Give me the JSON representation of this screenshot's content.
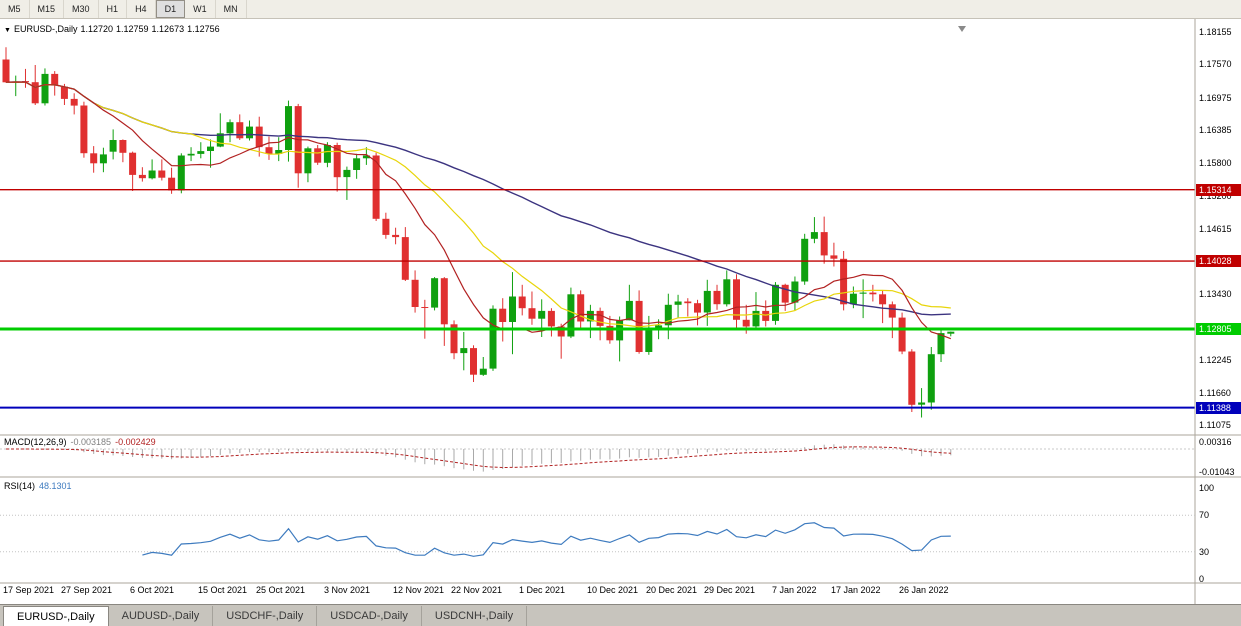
{
  "toolbar": {
    "timeframes": [
      "M5",
      "M15",
      "M30",
      "H1",
      "H4",
      "D1",
      "W1",
      "MN"
    ],
    "active": "D1"
  },
  "quote": {
    "symbol": "EURUSD-,Daily",
    "open": "1.12720",
    "high": "1.12759",
    "low": "1.12673",
    "close": "1.12756"
  },
  "chart_data": {
    "type": "candlestick",
    "symbol": "EURUSD-",
    "timeframe": "Daily",
    "y_range": [
      1.11075,
      1.18155
    ],
    "y_ticks": [
      1.18155,
      1.1757,
      1.16975,
      1.16385,
      1.158,
      1.152,
      1.14615,
      1.1343,
      1.12245,
      1.1166,
      1.11075
    ],
    "x_tick_labels": [
      "17 Sep 2021",
      "27 Sep 2021",
      "6 Oct 2021",
      "15 Oct 2021",
      "25 Oct 2021",
      "3 Nov 2021",
      "12 Nov 2021",
      "22 Nov 2021",
      "1 Dec 2021",
      "10 Dec 2021",
      "20 Dec 2021",
      "29 Dec 2021",
      "7 Jan 2022",
      "17 Jan 2022",
      "26 Jan 2022"
    ],
    "x_tick_indices": [
      0,
      6,
      13,
      20,
      26,
      33,
      40,
      46,
      53,
      60,
      66,
      72,
      79,
      85,
      92
    ],
    "colors": {
      "up": "#0FA00F",
      "down": "#E03030",
      "ma_fast": "#B22222",
      "ma_mid": "#E8D50A",
      "ma_slow": "#3C3480",
      "macd_hist": "#A9A9A9",
      "macd_signal": "#B22222",
      "rsi": "#3E7BBF"
    },
    "ma_periods": {
      "fast": 10,
      "mid": 20,
      "slow": 50
    },
    "hlines": [
      {
        "price": 1.15314,
        "label": "1.15314",
        "color": "#C00000",
        "width": 1.4
      },
      {
        "price": 1.14028,
        "label": "1.14028",
        "color": "#C00000",
        "width": 1.4
      },
      {
        "price": 1.12805,
        "label": "1.12805",
        "color": "#00CC00",
        "width": 3
      },
      {
        "price": 1.11388,
        "label": "1.11388",
        "color": "#0000BB",
        "width": 2
      }
    ],
    "indicators": {
      "macd": {
        "name": "MACD(12,26,9)",
        "fast": 12,
        "slow": 26,
        "signal": 9,
        "value_main": "-0.003185",
        "value_signal": "-0.002429",
        "y_ticks": [
          0.00316,
          -0.01043
        ],
        "y_range": [
          -0.01043,
          0.00316
        ]
      },
      "rsi": {
        "name": "RSI(14)",
        "period": 14,
        "value": "48.1301",
        "y_ticks": [
          100,
          70,
          30,
          0
        ],
        "levels": [
          70,
          30
        ],
        "y_range": [
          0,
          100
        ]
      }
    },
    "ohlc": [
      [
        1.1766,
        1.1788,
        1.1724,
        1.1725
      ],
      [
        1.1725,
        1.1737,
        1.17,
        1.1726
      ],
      [
        1.1727,
        1.1749,
        1.1715,
        1.1725
      ],
      [
        1.1725,
        1.1756,
        1.1684,
        1.1687
      ],
      [
        1.1687,
        1.175,
        1.1683,
        1.174
      ],
      [
        1.174,
        1.1745,
        1.1701,
        1.1719
      ],
      [
        1.1717,
        1.1722,
        1.1684,
        1.1695
      ],
      [
        1.1695,
        1.1705,
        1.1667,
        1.1683
      ],
      [
        1.1683,
        1.169,
        1.1589,
        1.1597
      ],
      [
        1.1597,
        1.161,
        1.1562,
        1.1579
      ],
      [
        1.1579,
        1.1607,
        1.1563,
        1.1595
      ],
      [
        1.16,
        1.164,
        1.1586,
        1.1621
      ],
      [
        1.1621,
        1.1622,
        1.1581,
        1.1598
      ],
      [
        1.1598,
        1.16,
        1.1529,
        1.1558
      ],
      [
        1.1558,
        1.1572,
        1.1546,
        1.1552
      ],
      [
        1.1552,
        1.1586,
        1.155,
        1.1566
      ],
      [
        1.1566,
        1.1586,
        1.1548,
        1.1553
      ],
      [
        1.1553,
        1.1571,
        1.1524,
        1.153
      ],
      [
        1.153,
        1.1597,
        1.1525,
        1.1593
      ],
      [
        1.1593,
        1.1608,
        1.1583,
        1.1596
      ],
      [
        1.1596,
        1.1617,
        1.1588,
        1.1601
      ],
      [
        1.1601,
        1.1622,
        1.1571,
        1.1609
      ],
      [
        1.1609,
        1.1669,
        1.1608,
        1.1633
      ],
      [
        1.1633,
        1.1658,
        1.1617,
        1.1653
      ],
      [
        1.1653,
        1.1667,
        1.1621,
        1.1624
      ],
      [
        1.1624,
        1.1656,
        1.162,
        1.1645
      ],
      [
        1.1645,
        1.1663,
        1.1591,
        1.1608
      ],
      [
        1.1608,
        1.1627,
        1.1585,
        1.1596
      ],
      [
        1.1596,
        1.1626,
        1.1583,
        1.1603
      ],
      [
        1.1603,
        1.1692,
        1.1582,
        1.1682
      ],
      [
        1.1682,
        1.1686,
        1.1535,
        1.1561
      ],
      [
        1.1561,
        1.1609,
        1.1545,
        1.1606
      ],
      [
        1.1606,
        1.1612,
        1.1576,
        1.158
      ],
      [
        1.158,
        1.1617,
        1.1572,
        1.1612
      ],
      [
        1.1612,
        1.1616,
        1.1528,
        1.1554
      ],
      [
        1.1554,
        1.1573,
        1.1513,
        1.1567
      ],
      [
        1.1567,
        1.1596,
        1.1551,
        1.1588
      ],
      [
        1.1588,
        1.1608,
        1.1576,
        1.1593
      ],
      [
        1.1593,
        1.1598,
        1.1475,
        1.1479
      ],
      [
        1.1479,
        1.149,
        1.1443,
        1.145
      ],
      [
        1.145,
        1.1463,
        1.1433,
        1.1446
      ],
      [
        1.1446,
        1.1464,
        1.1367,
        1.1369
      ],
      [
        1.1369,
        1.1386,
        1.131,
        1.132
      ],
      [
        1.132,
        1.1333,
        1.1263,
        1.1319
      ],
      [
        1.1319,
        1.1374,
        1.1314,
        1.1372
      ],
      [
        1.1372,
        1.1374,
        1.125,
        1.1289
      ],
      [
        1.1289,
        1.1296,
        1.1226,
        1.1237
      ],
      [
        1.1237,
        1.1275,
        1.1206,
        1.1246
      ],
      [
        1.1246,
        1.1251,
        1.1185,
        1.1198
      ],
      [
        1.1198,
        1.123,
        1.1196,
        1.1209
      ],
      [
        1.1209,
        1.1323,
        1.1205,
        1.1317
      ],
      [
        1.1317,
        1.1336,
        1.1258,
        1.1293
      ],
      [
        1.1293,
        1.1383,
        1.1235,
        1.1339
      ],
      [
        1.1339,
        1.136,
        1.1305,
        1.1318
      ],
      [
        1.1318,
        1.1348,
        1.1288,
        1.1299
      ],
      [
        1.1299,
        1.1334,
        1.1266,
        1.1313
      ],
      [
        1.1313,
        1.1318,
        1.1267,
        1.1285
      ],
      [
        1.1285,
        1.129,
        1.1227,
        1.1267
      ],
      [
        1.1267,
        1.1355,
        1.1264,
        1.1343
      ],
      [
        1.1343,
        1.135,
        1.128,
        1.1294
      ],
      [
        1.1294,
        1.1324,
        1.1264,
        1.1313
      ],
      [
        1.1313,
        1.1319,
        1.126,
        1.1286
      ],
      [
        1.1286,
        1.1304,
        1.1254,
        1.126
      ],
      [
        1.126,
        1.1303,
        1.1222,
        1.1296
      ],
      [
        1.1296,
        1.136,
        1.1296,
        1.1331
      ],
      [
        1.1331,
        1.135,
        1.1236,
        1.1239
      ],
      [
        1.1239,
        1.1304,
        1.1234,
        1.1279
      ],
      [
        1.1279,
        1.1298,
        1.1262,
        1.1287
      ],
      [
        1.1287,
        1.1344,
        1.1262,
        1.1324
      ],
      [
        1.1324,
        1.1342,
        1.13,
        1.133
      ],
      [
        1.133,
        1.1336,
        1.1303,
        1.1327
      ],
      [
        1.1327,
        1.1333,
        1.1287,
        1.131
      ],
      [
        1.131,
        1.1369,
        1.1286,
        1.1349
      ],
      [
        1.1349,
        1.136,
        1.1315,
        1.1325
      ],
      [
        1.1325,
        1.1386,
        1.1321,
        1.137
      ],
      [
        1.137,
        1.1379,
        1.1279,
        1.1297
      ],
      [
        1.1297,
        1.1324,
        1.1272,
        1.1285
      ],
      [
        1.1285,
        1.1347,
        1.128,
        1.1313
      ],
      [
        1.1313,
        1.1332,
        1.1285,
        1.1295
      ],
      [
        1.1295,
        1.1365,
        1.1288,
        1.136
      ],
      [
        1.136,
        1.1362,
        1.1313,
        1.1328
      ],
      [
        1.1328,
        1.1375,
        1.1314,
        1.1366
      ],
      [
        1.1366,
        1.1452,
        1.136,
        1.1443
      ],
      [
        1.1443,
        1.1482,
        1.1435,
        1.1455
      ],
      [
        1.1455,
        1.1483,
        1.1398,
        1.1413
      ],
      [
        1.1413,
        1.1436,
        1.1393,
        1.1407
      ],
      [
        1.1407,
        1.1421,
        1.1314,
        1.1325
      ],
      [
        1.1325,
        1.1357,
        1.1318,
        1.1344
      ],
      [
        1.1344,
        1.137,
        1.13,
        1.1346
      ],
      [
        1.1346,
        1.136,
        1.133,
        1.1343
      ],
      [
        1.1343,
        1.1349,
        1.1291,
        1.1325
      ],
      [
        1.1325,
        1.133,
        1.1264,
        1.1301
      ],
      [
        1.1301,
        1.131,
        1.1235,
        1.124
      ],
      [
        1.124,
        1.1244,
        1.1131,
        1.1144
      ],
      [
        1.1144,
        1.1174,
        1.1121,
        1.1148
      ],
      [
        1.1148,
        1.1248,
        1.1135,
        1.1235
      ],
      [
        1.1235,
        1.1279,
        1.1221,
        1.1273
      ],
      [
        1.1272,
        1.12759,
        1.12673,
        1.12756
      ]
    ]
  },
  "tabs": [
    "EURUSD-,Daily",
    "AUDUSD-,Daily",
    "USDCHF-,Daily",
    "USDCAD-,Daily",
    "USDCNH-,Daily"
  ],
  "active_tab": "EURUSD-,Daily"
}
